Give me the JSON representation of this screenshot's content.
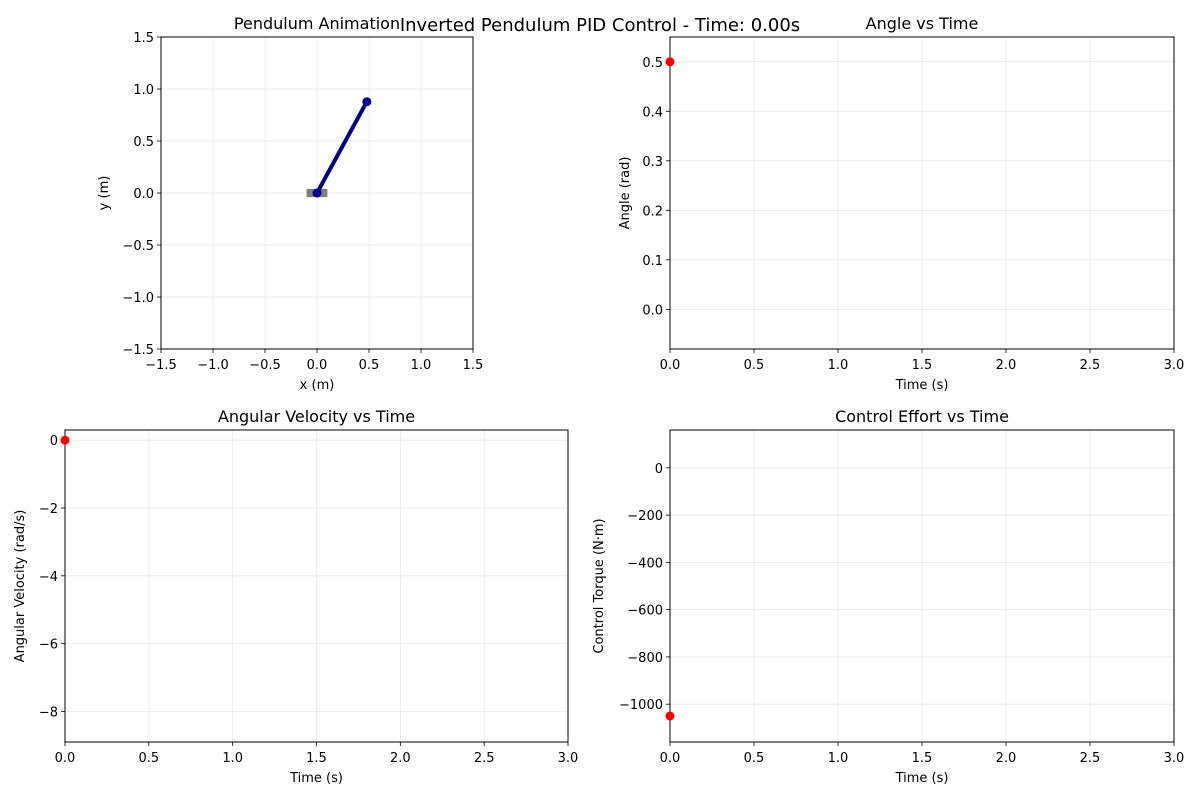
{
  "figure": {
    "suptitle": "Inverted Pendulum PID Control - Time: 0.00s"
  },
  "chart_data": [
    {
      "type": "line",
      "title": "Pendulum Animation",
      "xlabel": "x (m)",
      "ylabel": "y (m)",
      "xlim": [
        -1.5,
        1.5
      ],
      "ylim": [
        -1.5,
        1.5
      ],
      "xticks": [
        -1.5,
        -1.0,
        -0.5,
        0.0,
        0.5,
        1.0,
        1.5
      ],
      "yticks": [
        -1.5,
        -1.0,
        -0.5,
        0.0,
        0.5,
        1.0,
        1.5
      ],
      "tick_labels_x": [
        "−1.5",
        "−1.0",
        "−0.5",
        "0.0",
        "0.5",
        "1.0",
        "1.5"
      ],
      "tick_labels_y": [
        "−1.5",
        "−1.0",
        "−0.5",
        "0.0",
        "0.5",
        "1.0",
        "1.5"
      ],
      "grid": true,
      "base": {
        "x": 0.0,
        "y": 0.0,
        "width": 0.2,
        "height": 0.08,
        "color": "#808080"
      },
      "rod": {
        "x": [
          0.0,
          0.479
        ],
        "y": [
          0.0,
          0.878
        ],
        "color": "#00008b"
      }
    },
    {
      "type": "line",
      "title": "Angle vs Time",
      "xlabel": "Time (s)",
      "ylabel": "Angle (rad)",
      "xlim": [
        0,
        3
      ],
      "ylim": [
        -0.08,
        0.55
      ],
      "xticks": [
        0.0,
        0.5,
        1.0,
        1.5,
        2.0,
        2.5,
        3.0
      ],
      "yticks": [
        0.0,
        0.1,
        0.2,
        0.3,
        0.4,
        0.5
      ],
      "tick_labels_x": [
        "0.0",
        "0.5",
        "1.0",
        "1.5",
        "2.0",
        "2.5",
        "3.0"
      ],
      "tick_labels_y": [
        "0.0",
        "0.1",
        "0.2",
        "0.3",
        "0.4",
        "0.5"
      ],
      "grid": true,
      "points": [
        {
          "x": 0.0,
          "y": 0.5
        }
      ],
      "marker_color": "#ff0000"
    },
    {
      "type": "line",
      "title": "Angular Velocity vs Time",
      "xlabel": "Time (s)",
      "ylabel": "Angular Velocity (rad/s)",
      "xlim": [
        0,
        3
      ],
      "ylim": [
        -8.9,
        0.3
      ],
      "xticks": [
        0.0,
        0.5,
        1.0,
        1.5,
        2.0,
        2.5,
        3.0
      ],
      "yticks": [
        -8,
        -6,
        -4,
        -2,
        0
      ],
      "tick_labels_x": [
        "0.0",
        "0.5",
        "1.0",
        "1.5",
        "2.0",
        "2.5",
        "3.0"
      ],
      "tick_labels_y": [
        "−8",
        "−6",
        "−4",
        "−2",
        "0"
      ],
      "grid": true,
      "points": [
        {
          "x": 0.0,
          "y": 0.0
        }
      ],
      "marker_color": "#ff0000"
    },
    {
      "type": "line",
      "title": "Control Effort vs Time",
      "xlabel": "Time (s)",
      "ylabel": "Control Torque (N·m)",
      "xlim": [
        0,
        3
      ],
      "ylim": [
        -1160,
        160
      ],
      "xticks": [
        0.0,
        0.5,
        1.0,
        1.5,
        2.0,
        2.5,
        3.0
      ],
      "yticks": [
        -1000,
        -800,
        -600,
        -400,
        -200,
        0
      ],
      "tick_labels_x": [
        "0.0",
        "0.5",
        "1.0",
        "1.5",
        "2.0",
        "2.5",
        "3.0"
      ],
      "tick_labels_y": [
        "−1000",
        "−800",
        "−600",
        "−400",
        "−200",
        "0"
      ],
      "grid": true,
      "points": [
        {
          "x": 0.0,
          "y": -1050
        }
      ],
      "marker_color": "#ff0000"
    }
  ]
}
